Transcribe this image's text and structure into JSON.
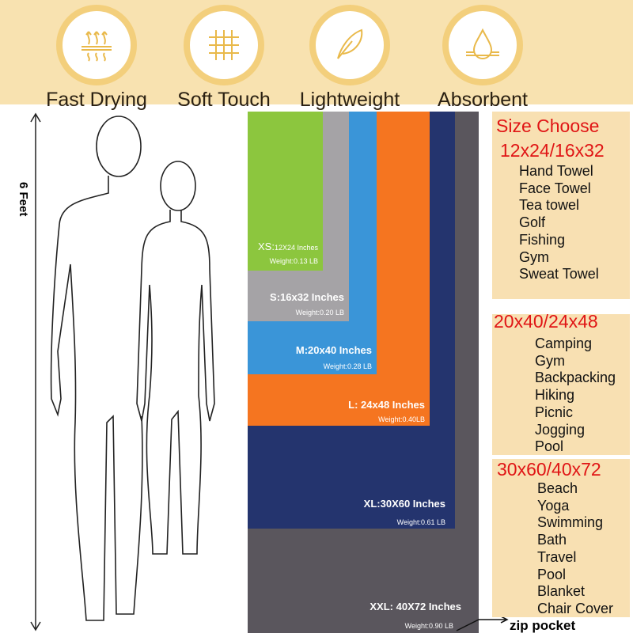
{
  "features": [
    {
      "label": "Fast Drying",
      "icon": "heat-waves-icon"
    },
    {
      "label": "Soft Touch",
      "icon": "fabric-weave-icon"
    },
    {
      "label": "Lightweight",
      "icon": "feather-icon"
    },
    {
      "label": "Absorbent",
      "icon": "water-drop-icon"
    }
  ],
  "height_label": "6 Feet",
  "sizes": [
    {
      "name": "XS:",
      "dims": "12X24 Inches",
      "weight": "Weight:0.13 LB",
      "color": "#8cc63e"
    },
    {
      "name": "S:",
      "dims": "16x32 Inches",
      "weight": "Weight:0.20 LB",
      "color": "#a5a3a6"
    },
    {
      "name": "M:",
      "dims": "20x40 Inches",
      "weight": "Weight:0.28 LB",
      "color": "#3a95d8"
    },
    {
      "name": "L:",
      "dims": " 24x48 Inches",
      "weight": "Weight:0.40LB",
      "color": "#f57520"
    },
    {
      "name": "XL:",
      "dims": "30X60 Inches",
      "weight": "Weight:0.61 LB",
      "color": "#24346e"
    },
    {
      "name": "XXL:",
      "dims": " 40X72 Inches",
      "weight": "Weight:0.90 LB",
      "color": "#5a565d"
    }
  ],
  "zip_label": "zip pocket",
  "panel1": {
    "title": "Size Choose",
    "sub": "12x24/16x32",
    "items": [
      "Hand Towel",
      "Face Towel",
      "Tea towel",
      "Golf",
      "Fishing",
      "Gym",
      "Sweat Towel"
    ]
  },
  "panel2": {
    "sub": "20x40/24x48",
    "items": [
      "Camping",
      "Gym",
      "Backpacking",
      "Hiking",
      "Picnic",
      "Jogging",
      "Pool"
    ]
  },
  "panel3": {
    "sub": "30x60/40x72",
    "items": [
      "Beach",
      "Yoga",
      "Swimming",
      "Bath",
      "Travel",
      "Pool",
      "Blanket",
      "Chair Cover"
    ]
  }
}
